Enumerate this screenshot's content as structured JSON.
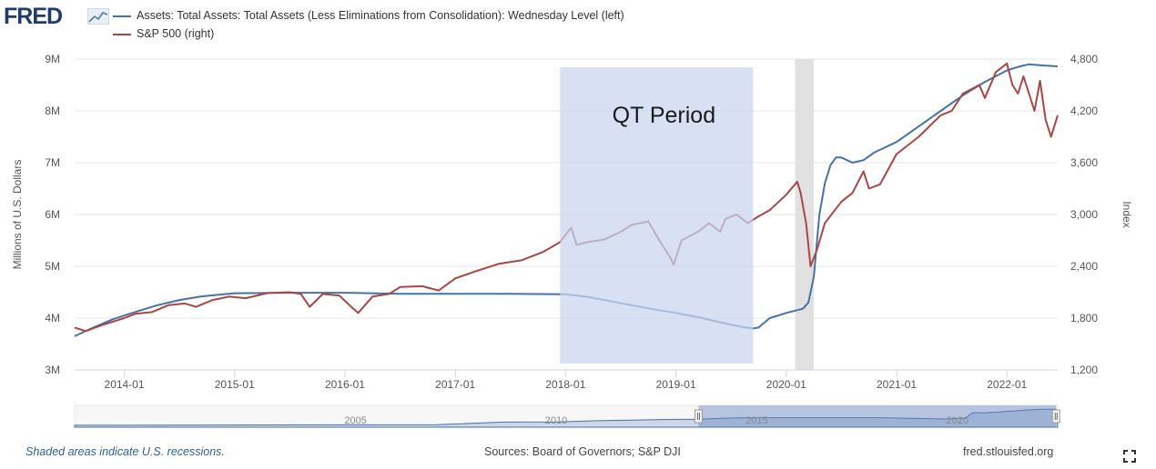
{
  "logo": {
    "text": "FRED"
  },
  "legend": [
    {
      "label": "Assets: Total Assets: Total Assets (Less Eliminations from Consolidation): Wednesday Level (left)",
      "color": "#4572a7"
    },
    {
      "label": "S&P 500 (right)",
      "color": "#aa4643"
    }
  ],
  "footer": {
    "note": "Shaded areas indicate U.S. recessions.",
    "sources": "Sources: Board of Governors; S&P DJI",
    "url": "fred.stlouisfed.org"
  },
  "icons": {
    "expand": "fullscreen-expand-icon",
    "logo_graph": "fred-graph-icon"
  },
  "chart_data": {
    "type": "line",
    "title": "",
    "xlabel": "",
    "ylabel_left": "Millions of U.S. Dollars",
    "ylabel_right": "Index",
    "x_range": [
      2013.55,
      2022.46
    ],
    "ylim_left": [
      3,
      9
    ],
    "ylim_right": [
      1200,
      4800
    ],
    "left_ticks": [
      {
        "v": 3,
        "label": "3M"
      },
      {
        "v": 4,
        "label": "4M"
      },
      {
        "v": 5,
        "label": "5M"
      },
      {
        "v": 6,
        "label": "6M"
      },
      {
        "v": 7,
        "label": "7M"
      },
      {
        "v": 8,
        "label": "8M"
      },
      {
        "v": 9,
        "label": "9M"
      }
    ],
    "right_ticks": [
      {
        "v": 1200,
        "label": "1,200"
      },
      {
        "v": 1800,
        "label": "1,800"
      },
      {
        "v": 2400,
        "label": "2,400"
      },
      {
        "v": 3000,
        "label": "3,000"
      },
      {
        "v": 3600,
        "label": "3,600"
      },
      {
        "v": 4200,
        "label": "4,200"
      },
      {
        "v": 4800,
        "label": "4,800"
      }
    ],
    "x_ticks": [
      {
        "v": 2014.0,
        "label": "2014-01"
      },
      {
        "v": 2015.0,
        "label": "2015-01"
      },
      {
        "v": 2016.0,
        "label": "2016-01"
      },
      {
        "v": 2017.0,
        "label": "2017-01"
      },
      {
        "v": 2018.0,
        "label": "2018-01"
      },
      {
        "v": 2019.0,
        "label": "2019-01"
      },
      {
        "v": 2020.0,
        "label": "2020-01"
      },
      {
        "v": 2021.0,
        "label": "2021-01"
      },
      {
        "v": 2022.0,
        "label": "2022-01"
      }
    ],
    "grid": true,
    "recessions": [
      {
        "start": 2020.08,
        "end": 2020.25
      }
    ],
    "annotations": [
      {
        "label": "QT Period",
        "start": 2017.95,
        "end": 2019.7,
        "color": "#c8d6ef"
      }
    ],
    "series": [
      {
        "name": "Assets: Total Assets: Total Assets (Less Eliminations from Consolidation): Wednesday Level",
        "axis": "left",
        "color": "#4572a7",
        "x": [
          2013.55,
          2013.7,
          2013.9,
          2014.1,
          2014.3,
          2014.5,
          2014.7,
          2014.9,
          2015.0,
          2015.5,
          2016.0,
          2016.5,
          2017.0,
          2017.5,
          2018.0,
          2018.2,
          2018.4,
          2018.6,
          2018.8,
          2019.0,
          2019.2,
          2019.4,
          2019.6,
          2019.7,
          2019.75,
          2019.85,
          2020.0,
          2020.15,
          2020.2,
          2020.25,
          2020.3,
          2020.35,
          2020.4,
          2020.45,
          2020.5,
          2020.6,
          2020.7,
          2020.8,
          2021.0,
          2021.2,
          2021.4,
          2021.6,
          2021.8,
          2022.0,
          2022.1,
          2022.2,
          2022.3,
          2022.46
        ],
        "y": [
          3.65,
          3.8,
          3.98,
          4.12,
          4.25,
          4.35,
          4.42,
          4.46,
          4.48,
          4.49,
          4.49,
          4.47,
          4.47,
          4.47,
          4.46,
          4.41,
          4.33,
          4.25,
          4.17,
          4.1,
          4.02,
          3.92,
          3.83,
          3.8,
          3.82,
          4.0,
          4.1,
          4.18,
          4.3,
          4.8,
          6.0,
          6.6,
          6.95,
          7.1,
          7.1,
          7.0,
          7.05,
          7.2,
          7.4,
          7.7,
          8.0,
          8.3,
          8.56,
          8.78,
          8.85,
          8.9,
          8.88,
          8.86
        ]
      },
      {
        "name": "S&P 500",
        "axis": "right",
        "color": "#aa4643",
        "x": [
          2013.55,
          2013.65,
          2013.8,
          2014.0,
          2014.1,
          2014.25,
          2014.4,
          2014.55,
          2014.65,
          2014.8,
          2014.95,
          2015.1,
          2015.3,
          2015.5,
          2015.6,
          2015.68,
          2015.8,
          2015.95,
          2016.05,
          2016.12,
          2016.25,
          2016.4,
          2016.5,
          2016.7,
          2016.85,
          2017.0,
          2017.2,
          2017.4,
          2017.6,
          2017.8,
          2017.95,
          2018.05,
          2018.1,
          2018.2,
          2018.35,
          2018.5,
          2018.6,
          2018.75,
          2018.85,
          2018.95,
          2018.98,
          2019.05,
          2019.2,
          2019.3,
          2019.4,
          2019.45,
          2019.55,
          2019.65,
          2019.75,
          2019.85,
          2020.0,
          2020.1,
          2020.13,
          2020.18,
          2020.22,
          2020.28,
          2020.35,
          2020.5,
          2020.6,
          2020.7,
          2020.75,
          2020.85,
          2021.0,
          2021.2,
          2021.4,
          2021.5,
          2021.6,
          2021.75,
          2021.8,
          2021.9,
          2022.0,
          2022.05,
          2022.1,
          2022.15,
          2022.2,
          2022.25,
          2022.3,
          2022.35,
          2022.4,
          2022.46
        ],
        "y": [
          1690,
          1650,
          1720,
          1800,
          1850,
          1870,
          1950,
          1970,
          1930,
          2010,
          2050,
          2030,
          2090,
          2100,
          2080,
          1930,
          2080,
          2060,
          1940,
          1860,
          2050,
          2080,
          2160,
          2170,
          2120,
          2260,
          2350,
          2430,
          2470,
          2570,
          2680,
          2850,
          2650,
          2680,
          2710,
          2800,
          2880,
          2920,
          2700,
          2500,
          2420,
          2700,
          2800,
          2900,
          2800,
          2950,
          3000,
          2900,
          2980,
          3050,
          3230,
          3380,
          3250,
          2900,
          2400,
          2600,
          2900,
          3150,
          3250,
          3500,
          3300,
          3350,
          3700,
          3900,
          4150,
          4200,
          4400,
          4500,
          4350,
          4650,
          4750,
          4500,
          4400,
          4600,
          4400,
          4200,
          4550,
          4100,
          3900,
          4150
        ]
      }
    ],
    "navigator": {
      "x_labels": [
        {
          "v": 2005,
          "label": "2005"
        },
        {
          "v": 2010,
          "label": "2010"
        },
        {
          "v": 2015,
          "label": "2015"
        },
        {
          "v": 2020,
          "label": "2020"
        }
      ],
      "range": [
        1998,
        2022.5
      ],
      "selected": [
        2013.55,
        2022.46
      ]
    }
  }
}
